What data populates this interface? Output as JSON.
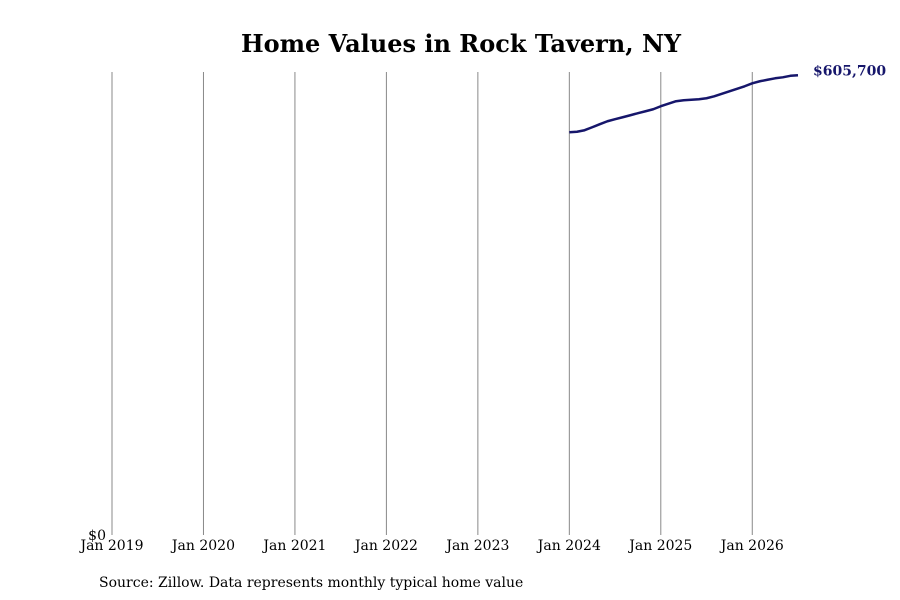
{
  "chart_data": {
    "type": "line",
    "title": "Home Values in Rock Tavern, NY",
    "source": "Source: Zillow. Data represents monthly typical home value",
    "x": [
      "2024-01",
      "2024-02",
      "2024-03",
      "2024-04",
      "2024-05",
      "2024-06",
      "2024-07",
      "2024-08",
      "2024-09",
      "2024-10",
      "2024-11",
      "2024-12",
      "2025-01",
      "2025-02",
      "2025-03",
      "2025-04",
      "2025-05",
      "2025-06",
      "2025-07",
      "2025-08",
      "2025-09",
      "2025-10",
      "2025-11",
      "2025-12",
      "2026-01",
      "2026-02",
      "2026-03",
      "2026-04",
      "2026-05",
      "2026-06",
      "2026-07"
    ],
    "series": [
      {
        "color": "#16166b",
        "values": [
          530600,
          531300,
          533300,
          537200,
          541200,
          545100,
          547800,
          550400,
          553000,
          555700,
          558300,
          560900,
          564900,
          568200,
          571500,
          572800,
          573400,
          574100,
          575400,
          578000,
          581300,
          584600,
          587900,
          591200,
          595100,
          597800,
          599800,
          601700,
          603000,
          605000,
          605700
        ]
      }
    ],
    "annotations": [
      {
        "text": "$605,700",
        "x": "2026-07",
        "y": 605700
      }
    ],
    "xlim": [
      "2019-01",
      "2026-07"
    ],
    "xticks": [
      {
        "value": "2019-01",
        "label": "Jan 2019"
      },
      {
        "value": "2020-01",
        "label": "Jan 2020"
      },
      {
        "value": "2021-01",
        "label": "Jan 2021"
      },
      {
        "value": "2022-01",
        "label": "Jan 2022"
      },
      {
        "value": "2023-01",
        "label": "Jan 2023"
      },
      {
        "value": "2024-01",
        "label": "Jan 2024"
      },
      {
        "value": "2025-01",
        "label": "Jan 2025"
      },
      {
        "value": "2026-01",
        "label": "Jan 2026"
      }
    ],
    "ylim": [
      0,
      610000
    ],
    "yticks": [
      {
        "value": 0,
        "label": "$0"
      }
    ],
    "grid": true
  }
}
